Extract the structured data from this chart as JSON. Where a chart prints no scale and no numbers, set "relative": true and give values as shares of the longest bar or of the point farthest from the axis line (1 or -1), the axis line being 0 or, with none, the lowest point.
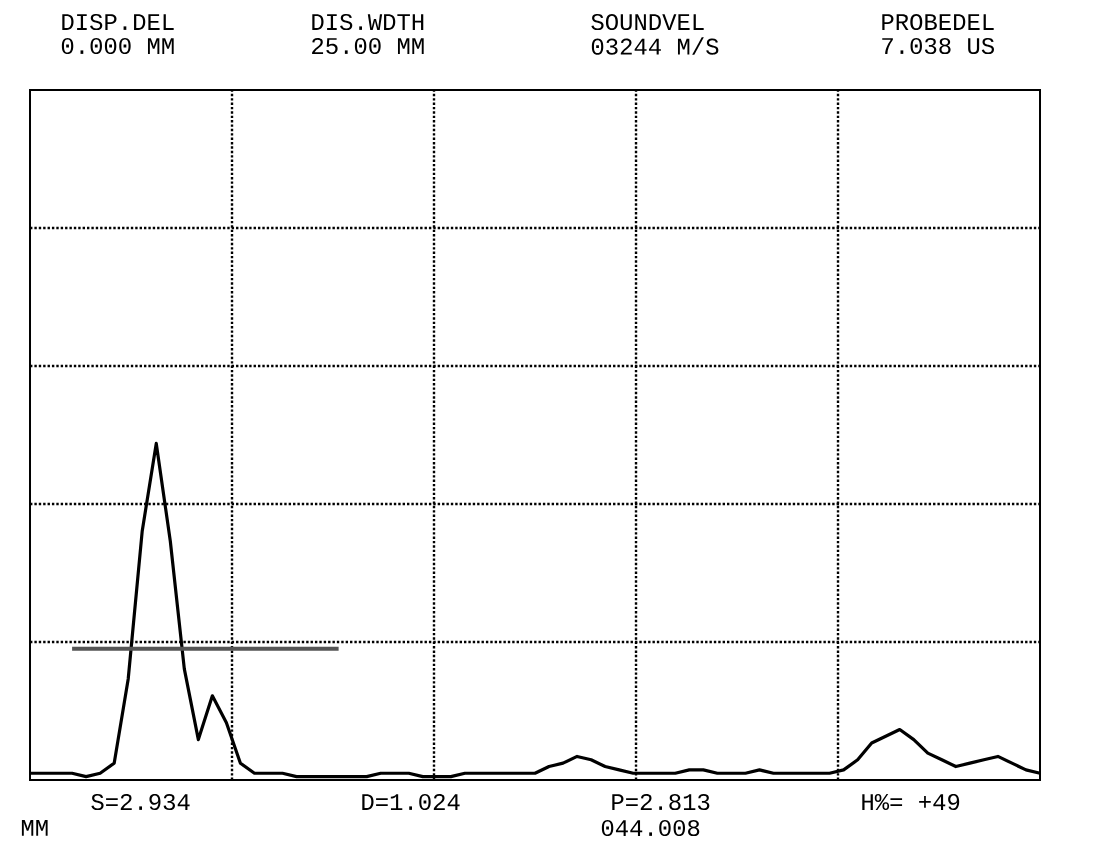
{
  "chart_data": {
    "type": "line",
    "relative": true,
    "grid": true,
    "marker": "none",
    "line_style": "solid",
    "categories": [
      null,
      null,
      null,
      null,
      null,
      null,
      null,
      null,
      null,
      null,
      null,
      null,
      null,
      null,
      null,
      null,
      null,
      null,
      null,
      null,
      null,
      null,
      null,
      null,
      null,
      null,
      null,
      null,
      null,
      null,
      null,
      null,
      null,
      null,
      null,
      null,
      null,
      null,
      null,
      null,
      null,
      null,
      null,
      null,
      null,
      null,
      null,
      null,
      null,
      null,
      null,
      null,
      null,
      null,
      null,
      null,
      null,
      null,
      null,
      null,
      null,
      null,
      null,
      null,
      null,
      null,
      null,
      null,
      null,
      null,
      null,
      null,
      null
    ],
    "series": [
      {
        "color": "#000000",
        "values": [
          0.02,
          0.02,
          0.02,
          0.02,
          0.01,
          0.02,
          0.05,
          0.3,
          0.74,
          1,
          0.71,
          0.33,
          0.12,
          0.25,
          0.17,
          0.05,
          0.02,
          0.02,
          0.02,
          0.01,
          0.01,
          0.01,
          0.01,
          0.01,
          0.01,
          0.02,
          0.02,
          0.02,
          0.01,
          0.01,
          0.01,
          0.02,
          0.02,
          0.02,
          0.02,
          0.02,
          0.02,
          0.04,
          0.05,
          0.07,
          0.06,
          0.04,
          0.03,
          0.02,
          0.02,
          0.02,
          0.02,
          0.03,
          0.03,
          0.02,
          0.02,
          0.02,
          0.03,
          0.02,
          0.02,
          0.02,
          0.02,
          0.02,
          0.03,
          0.06,
          0.11,
          0.13,
          0.15,
          0.12,
          0.08,
          0.06,
          0.04,
          0.05,
          0.06,
          0.07,
          0.05,
          0.03,
          0.02
        ]
      },
      {
        "color": "#555555",
        "values": [
          null,
          null,
          null,
          0.39,
          0.39,
          0.39,
          0.39,
          0.39,
          0.39,
          0.39,
          0.39,
          0.39,
          0.39,
          0.39,
          0.39,
          0.39,
          0.39,
          0.39,
          0.39,
          0.39,
          0.39,
          0.39,
          0.39,
          null,
          null,
          null,
          null,
          null,
          null,
          null,
          null,
          null,
          null,
          null,
          null,
          null,
          null,
          null,
          null,
          null,
          null,
          null,
          null,
          null,
          null,
          null,
          null,
          null,
          null,
          null,
          null,
          null,
          null,
          null,
          null,
          null,
          null,
          null,
          null,
          null,
          null,
          null,
          null,
          null,
          null,
          null,
          null,
          null,
          null,
          null,
          null,
          null,
          null
        ]
      }
    ],
    "annotations": [
      "DISP.DEL",
      "0.000 MM",
      "DIS.WDTH",
      "25.00 MM",
      "SOUNDVEL",
      "03244 M/S",
      "PROBEDEL",
      "7.038 US",
      "S=2.934",
      "D=1.024",
      "P=2.813",
      "H%= +49",
      "MM",
      "044.008"
    ]
  }
}
